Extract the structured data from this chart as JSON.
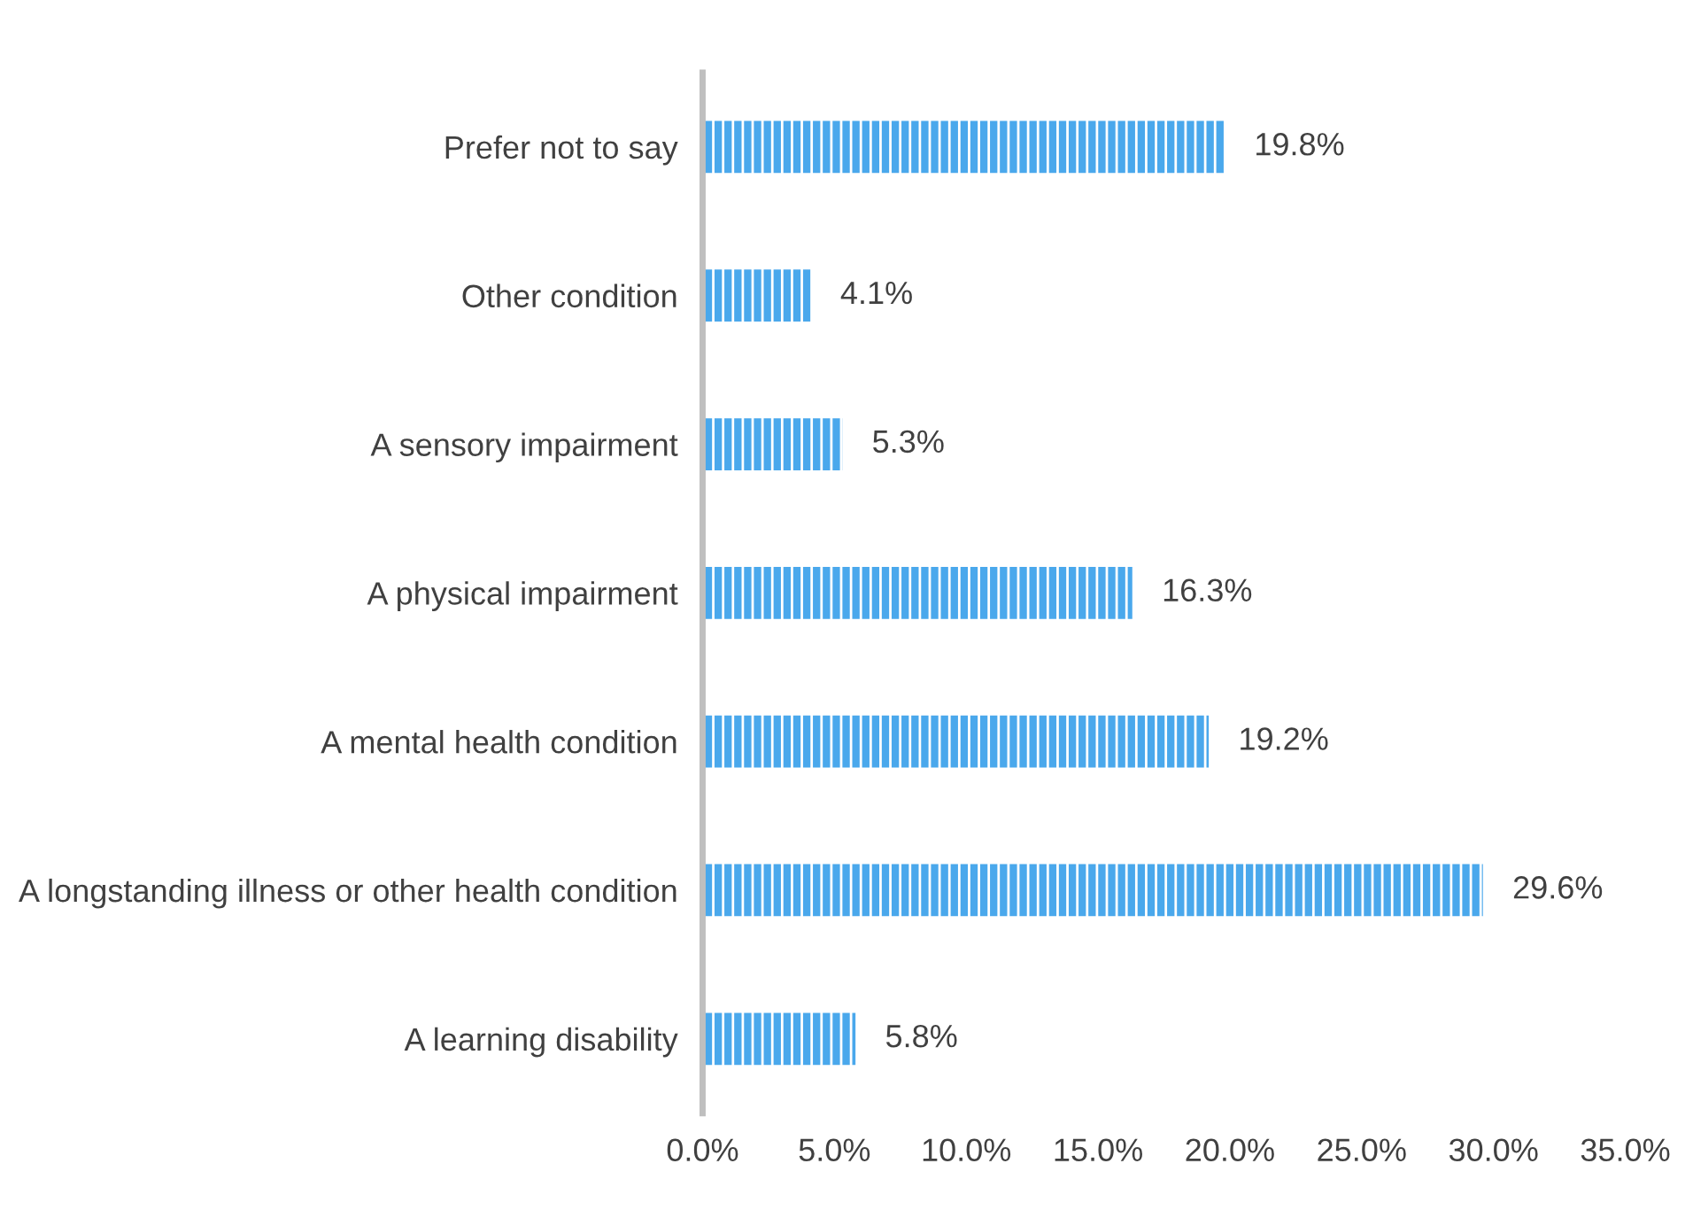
{
  "chart_data": {
    "type": "bar",
    "orientation": "horizontal",
    "categories": [
      "Prefer not to say",
      "Other condition",
      "A sensory impairment",
      "A physical impairment",
      "A mental health condition",
      "A longstanding illness or other health condition",
      "A learning disability"
    ],
    "values": [
      19.8,
      4.1,
      5.3,
      16.3,
      19.2,
      29.6,
      5.8
    ],
    "value_labels": [
      "19.8%",
      "4.1%",
      "5.3%",
      "16.3%",
      "19.2%",
      "29.6%",
      "5.8%"
    ],
    "color": "#4aa8ec",
    "xlim": [
      0,
      35
    ],
    "xticks": [
      {
        "value": 0,
        "label": "0.0%"
      },
      {
        "value": 5,
        "label": "5.0%"
      },
      {
        "value": 10,
        "label": "10.0%"
      },
      {
        "value": 15,
        "label": "15.0%"
      },
      {
        "value": 20,
        "label": "20.0%"
      },
      {
        "value": 25,
        "label": "25.0%"
      },
      {
        "value": 30,
        "label": "30.0%"
      },
      {
        "value": 35,
        "label": "35.0%"
      }
    ],
    "grid": false,
    "legend": false
  }
}
